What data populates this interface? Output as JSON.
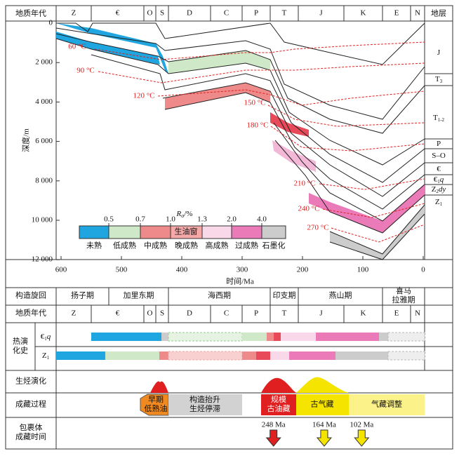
{
  "header": {
    "row_label": "地质年代",
    "periods": [
      "Z",
      "€",
      "O",
      "S",
      "D",
      "C",
      "P",
      "T",
      "J",
      "K",
      "E",
      "N"
    ],
    "strata_label": "地层"
  },
  "depth_axis": {
    "label": "深度/m",
    "ticks": [
      0,
      {
        "value": 2000,
        "label": "2 000"
      },
      {
        "value": 4000,
        "label": "4 000"
      },
      {
        "value": 6000,
        "label": "6 000"
      },
      {
        "value": 8000,
        "label": "8 000"
      },
      {
        "value": 10000,
        "label": "10 000"
      },
      {
        "value": 12000,
        "label": "12 000"
      }
    ]
  },
  "time_axis": {
    "label": "时间/Ma",
    "ticks": [
      600,
      500,
      400,
      300,
      200,
      100,
      0
    ]
  },
  "temperatures": [
    "60 °C",
    "90 °C",
    "120 °C",
    "150 °C",
    "180 °C",
    "210 °C",
    "240 °C",
    "270 °C"
  ],
  "ro_legend": {
    "symbol": "R",
    "subscript": "o",
    "unit": "/%",
    "ticks": [
      0.5,
      0.7,
      {
        "value": 1.0,
        "label": "1.0"
      },
      1.3,
      {
        "value": 2.0,
        "label": "2.0"
      },
      {
        "value": 4.0,
        "label": "4.0"
      }
    ],
    "classes": [
      "未熟",
      "低成熟",
      "中成熟",
      "晚成熟",
      "高成熟",
      "过成熟",
      "石墨化"
    ],
    "window": "生油窗"
  },
  "strata": [
    {
      "base": "J"
    },
    {
      "base": "T",
      "sub": "3"
    },
    {
      "base": "T",
      "sub": "1-2"
    },
    {
      "base": "P"
    },
    {
      "base": "S–O"
    },
    {
      "base": "€"
    },
    {
      "base": "€",
      "sub": "1",
      "suffix": "q"
    },
    {
      "base": "Z",
      "sub": "2",
      "suffix": "dy"
    },
    {
      "base": "Z",
      "sub": "1"
    }
  ],
  "tectonic": {
    "label": "构造旋回",
    "cycles": [
      [
        "扬子期"
      ],
      [
        "加里东期"
      ],
      [
        "海西期"
      ],
      [
        "印支期"
      ],
      [
        "燕山期"
      ],
      [
        "喜马",
        "拉雅期"
      ]
    ]
  },
  "thermal": {
    "label": [
      "热演",
      "化史"
    ],
    "rows": [
      {
        "base": "€",
        "sub": "1",
        "suffix": "q"
      },
      {
        "base": "Z",
        "sub": "1"
      }
    ]
  },
  "hc_label": "生烃演化",
  "accumulation": {
    "label": "成藏过程",
    "stages": [
      [
        "早期",
        "低熟油"
      ],
      [
        "构造抬升",
        "生烃停滞"
      ],
      [
        "规模",
        "古油藏"
      ],
      [
        "古气藏"
      ],
      [
        "气藏调整"
      ]
    ]
  },
  "inclusion": {
    "label": [
      "包裹体",
      "成藏时间"
    ],
    "times": [
      {
        "value": 248,
        "label": "248 Ma"
      },
      {
        "value": 164,
        "label": "164 Ma"
      },
      {
        "value": 102,
        "label": "102 Ma"
      }
    ]
  }
}
